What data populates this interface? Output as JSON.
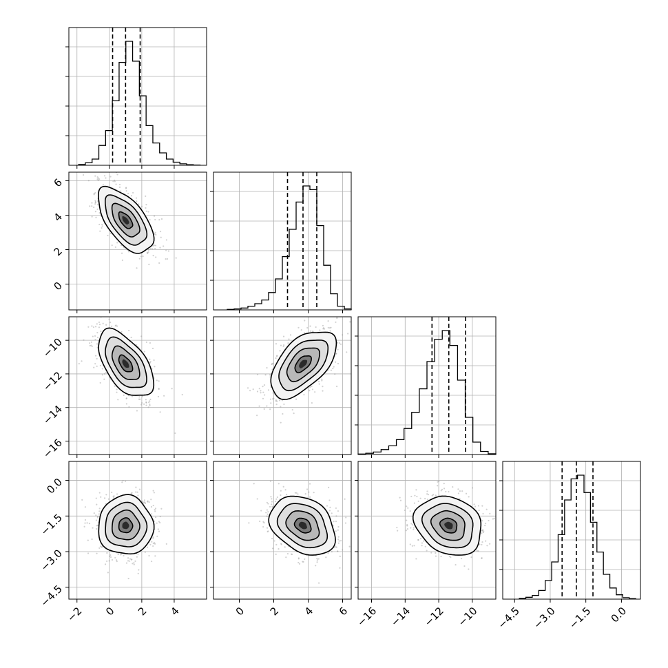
{
  "chart_data": {
    "type": "corner",
    "parameters": [
      {
        "ticks": [
          -2,
          0,
          2,
          4
        ],
        "tick_labels": [
          "−2",
          "0",
          "2",
          "4"
        ],
        "range": [
          -2.5,
          6.0
        ],
        "median": 1.0,
        "q16": 0.2,
        "q84": 1.9
      },
      {
        "ticks": [
          0,
          2,
          4,
          6
        ],
        "tick_labels": [
          "0",
          "2",
          "4",
          "6"
        ],
        "range": [
          -1.5,
          6.5
        ],
        "median": 3.7,
        "q16": 2.8,
        "q84": 4.5
      },
      {
        "ticks": [
          -16,
          -14,
          -12,
          -10
        ],
        "tick_labels": [
          "−16",
          "−14",
          "−12",
          "−10"
        ],
        "range": [
          -16.8,
          -8.6
        ],
        "median": -11.4,
        "q16": -12.4,
        "q84": -10.4
      },
      {
        "ticks": [
          -4.5,
          -3.0,
          -1.5,
          0.0
        ],
        "tick_labels": [
          "−4.5",
          "−3.0",
          "−1.5",
          "0.0"
        ],
        "range": [
          -5.0,
          0.8
        ],
        "median": -1.9,
        "q16": -2.5,
        "q84": -1.2
      }
    ],
    "histograms": [
      {
        "bin_range": [
          -1.9,
          5.6
        ],
        "counts": [
          0.006,
          0.02,
          0.05,
          0.16,
          0.28,
          0.52,
          0.83,
          1.0,
          0.84,
          0.56,
          0.32,
          0.18,
          0.1,
          0.05,
          0.025,
          0.012,
          0.005,
          0.002
        ]
      },
      {
        "bin_range": [
          -0.7,
          6.5
        ],
        "counts": [
          0.004,
          0.008,
          0.015,
          0.03,
          0.05,
          0.08,
          0.14,
          0.25,
          0.43,
          0.65,
          0.87,
          1.0,
          0.97,
          0.68,
          0.36,
          0.13,
          0.03,
          0.008
        ]
      },
      {
        "bin_range": [
          -16.8,
          -8.6
        ],
        "counts": [
          0.004,
          0.01,
          0.02,
          0.04,
          0.07,
          0.12,
          0.21,
          0.34,
          0.53,
          0.75,
          0.93,
          1.0,
          0.88,
          0.6,
          0.3,
          0.1,
          0.025,
          0.006
        ]
      },
      {
        "bin_range": [
          -4.3,
          0.6
        ],
        "counts": [
          0.006,
          0.015,
          0.03,
          0.07,
          0.15,
          0.3,
          0.52,
          0.8,
          0.97,
          1.0,
          0.86,
          0.62,
          0.38,
          0.2,
          0.09,
          0.035,
          0.012,
          0.004
        ]
      }
    ],
    "pairs": [
      {
        "x": 0,
        "y": 1,
        "mean": [
          1.0,
          3.7
        ],
        "sigma": [
          0.85,
          0.95
        ],
        "rho": -0.6
      },
      {
        "x": 0,
        "y": 2,
        "mean": [
          1.0,
          -11.4
        ],
        "sigma": [
          0.85,
          1.0
        ],
        "rho": -0.55
      },
      {
        "x": 1,
        "y": 2,
        "mean": [
          3.7,
          -11.4
        ],
        "sigma": [
          0.95,
          1.0
        ],
        "rho": 0.55
      },
      {
        "x": 0,
        "y": 3,
        "mean": [
          1.0,
          -1.9
        ],
        "sigma": [
          0.85,
          0.62
        ],
        "rho": 0.0
      },
      {
        "x": 1,
        "y": 3,
        "mean": [
          3.7,
          -1.9
        ],
        "sigma": [
          0.95,
          0.62
        ],
        "rho": -0.3
      },
      {
        "x": 2,
        "y": 3,
        "mean": [
          -11.4,
          -1.9
        ],
        "sigma": [
          1.0,
          0.62
        ],
        "rho": -0.2
      }
    ],
    "contour_levels_sigma": [
      0.5,
      1.0,
      1.5,
      2.0
    ],
    "grid": true
  }
}
